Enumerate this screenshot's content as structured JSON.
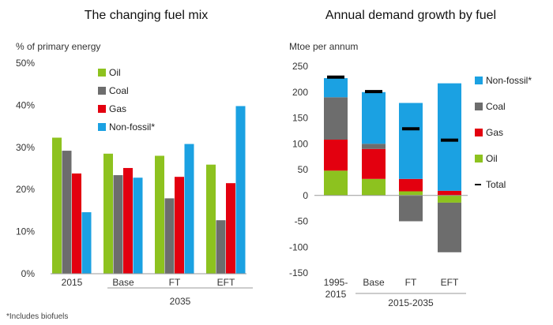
{
  "footnote": "*Includes biofuels",
  "chart_data": [
    {
      "type": "bar",
      "title": "The changing fuel mix",
      "ylabel": "% of primary energy",
      "ylim": [
        0,
        50
      ],
      "yticks": [
        "0%",
        "10%",
        "20%",
        "30%",
        "40%",
        "50%"
      ],
      "categories": [
        "2015",
        "Base",
        "FT",
        "EFT"
      ],
      "group_label": "2035",
      "series": [
        {
          "name": "Oil",
          "color": "#8dc21f",
          "values": [
            32.3,
            28.5,
            28.0,
            25.9
          ]
        },
        {
          "name": "Coal",
          "color": "#6d6d6d",
          "values": [
            29.2,
            23.4,
            17.9,
            12.7
          ]
        },
        {
          "name": "Gas",
          "color": "#e3000f",
          "values": [
            23.8,
            25.1,
            23.0,
            21.5
          ]
        },
        {
          "name": "Non-fossil*",
          "color": "#1ba1e2",
          "values": [
            14.6,
            22.8,
            30.8,
            39.8
          ]
        }
      ],
      "legend_position": "top-left"
    },
    {
      "type": "bar",
      "stacked": true,
      "title": "Annual demand growth by fuel",
      "ylabel": "Mtoe per annum",
      "ylim": [
        -150,
        250
      ],
      "yticks": [
        "-150",
        "-100",
        "-50",
        "0",
        "50",
        "100",
        "150",
        "200",
        "250"
      ],
      "categories": [
        "1995-2015",
        "Base",
        "FT",
        "EFT"
      ],
      "group_label": "2015-2035",
      "series": [
        {
          "name": "Oil",
          "color": "#8dc21f",
          "values": [
            48,
            32,
            8,
            -14
          ]
        },
        {
          "name": "Gas",
          "color": "#e3000f",
          "values": [
            60,
            58,
            24,
            9
          ]
        },
        {
          "name": "Coal",
          "color": "#6d6d6d",
          "values": [
            82,
            10,
            -50,
            -96
          ]
        },
        {
          "name": "Non-fossil*",
          "color": "#1ba1e2",
          "values": [
            37,
            100,
            147,
            208
          ]
        }
      ],
      "total": {
        "name": "Total",
        "values": [
          229,
          201,
          129,
          107
        ]
      },
      "legend_position": "right"
    }
  ]
}
